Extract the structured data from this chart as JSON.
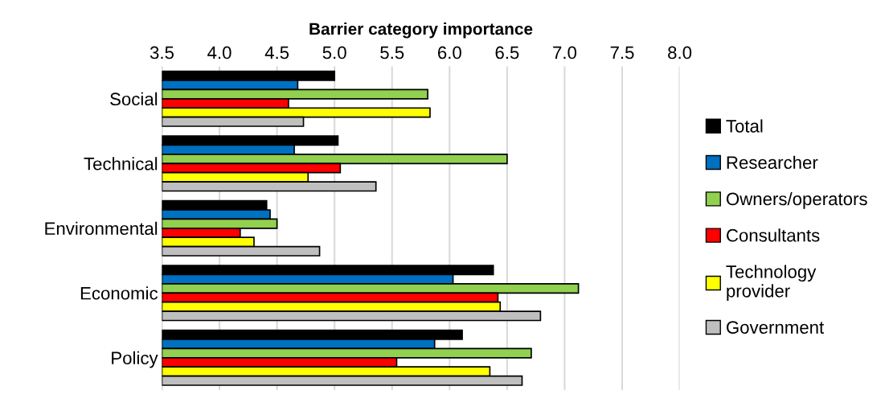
{
  "chart_data": {
    "type": "bar",
    "orientation": "horizontal",
    "xlabel": "Barrier category importance",
    "categories": [
      "Social",
      "Technical",
      "Environmental",
      "Economic",
      "Policy"
    ],
    "xlim": [
      3.5,
      8.0
    ],
    "xticks": [
      {
        "value": 3.5,
        "label": "3.5"
      },
      {
        "value": 4.0,
        "label": "4.0"
      },
      {
        "value": 4.5,
        "label": "4.5"
      },
      {
        "value": 5.0,
        "label": "5.0"
      },
      {
        "value": 5.5,
        "label": "5.5"
      },
      {
        "value": 6.0,
        "label": "6.0"
      },
      {
        "value": 6.5,
        "label": "6.5"
      },
      {
        "value": 7.0,
        "label": "7.0"
      },
      {
        "value": 7.5,
        "label": "7.5"
      },
      {
        "value": 8.0,
        "label": "8.0"
      }
    ],
    "grid": "x",
    "legend": "right",
    "series": [
      {
        "name": "Total",
        "color": "#000000",
        "values": [
          5.0,
          5.03,
          4.41,
          6.38,
          6.11
        ]
      },
      {
        "name": "Researcher",
        "color": "#0070c0",
        "values": [
          4.68,
          4.65,
          4.44,
          6.03,
          5.87
        ]
      },
      {
        "name": "Owners/operators",
        "color": "#92d050",
        "values": [
          5.81,
          6.5,
          4.5,
          7.12,
          6.71
        ]
      },
      {
        "name": "Consultants",
        "color": "#ff0000",
        "values": [
          4.6,
          5.05,
          4.18,
          6.42,
          5.54
        ]
      },
      {
        "name": "Technology\nprovider",
        "color": "#ffff00",
        "values": [
          5.83,
          4.77,
          4.3,
          6.44,
          6.35
        ]
      },
      {
        "name": "Government",
        "color": "#bfbfbf",
        "values": [
          4.73,
          5.36,
          4.87,
          6.79,
          6.63
        ]
      }
    ]
  }
}
